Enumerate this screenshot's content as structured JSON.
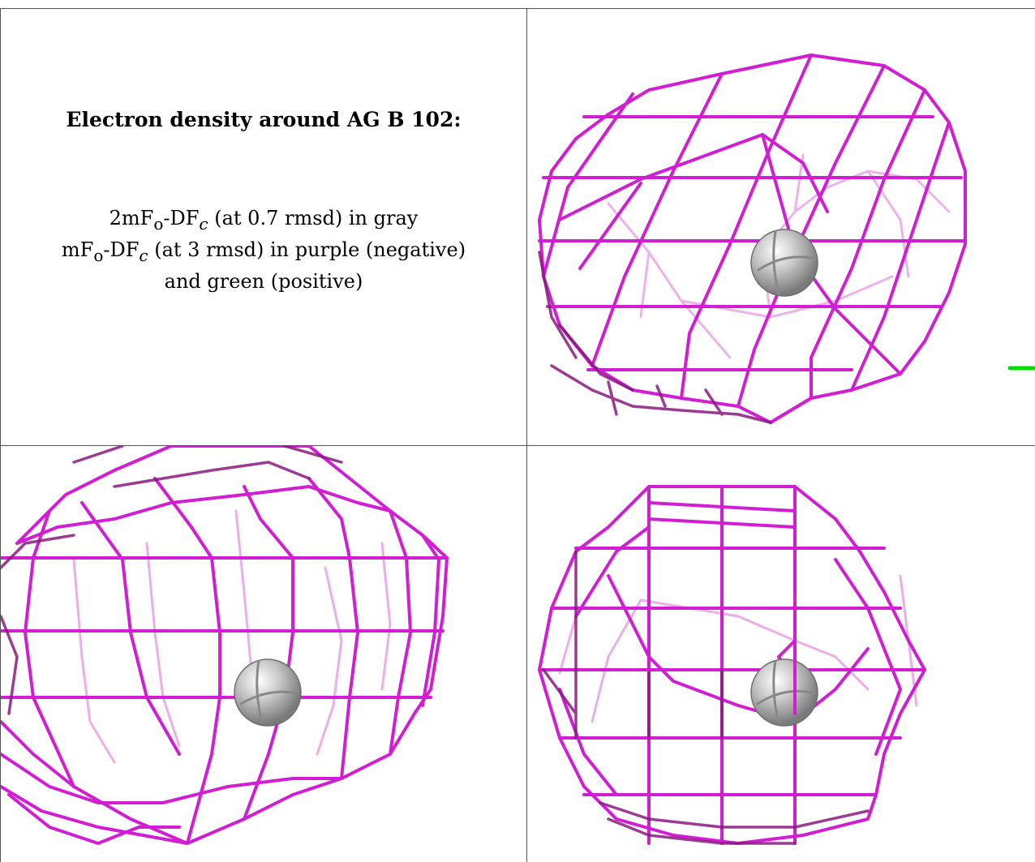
{
  "panel_text": {
    "title": "Electron density around AG B 102:",
    "line1": "2mFo-DFc (at 0.7 rmsd) in gray",
    "line2": "mFo-DFc (at 3 rmsd) in purple (negative)",
    "line3": "and green (positive)"
  },
  "colors": {
    "mesh": "#d21ed2",
    "mesh_dark": "#8a1a80",
    "mesh_light": "#e9a0e6",
    "atom": "#b3b3b3",
    "positive_marker": "#00e000",
    "grid_line": "#555555"
  },
  "views": [
    {
      "name": "view-1",
      "atom": "sphere"
    },
    {
      "name": "view-2",
      "atom": "sphere"
    },
    {
      "name": "view-3",
      "atom": "sphere"
    }
  ]
}
